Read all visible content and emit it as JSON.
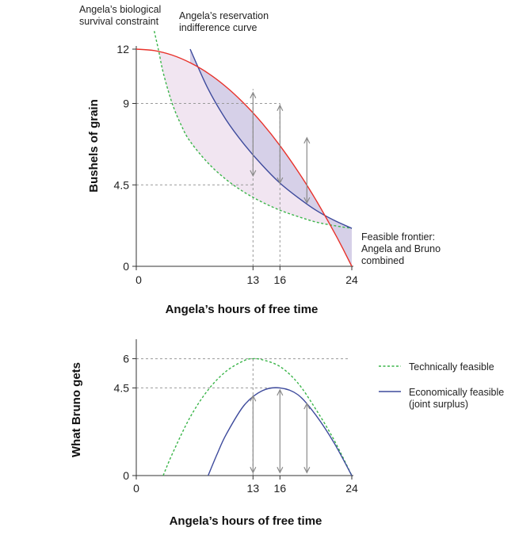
{
  "chart_data": [
    {
      "type": "line",
      "xlabel": "Angela’s hours of free time",
      "ylabel": "Bushels of grain",
      "x_ticks": [
        0,
        13,
        16,
        24
      ],
      "y_ticks": [
        0,
        4.5,
        9,
        12
      ],
      "x_tick_labels": [
        "0",
        "13",
        "16",
        "24"
      ],
      "y_tick_labels": [
        "0",
        "4.5",
        "9",
        "12"
      ],
      "xlim": [
        0,
        24
      ],
      "ylim": [
        0,
        12
      ],
      "grid": false,
      "annotations": {
        "survival": "Angela’s biological survival constraint",
        "survival_lines": [
          "Angela’s biological",
          "survival constraint"
        ],
        "reservation": "Angela’s reservation indifference curve",
        "reservation_lines": [
          "Angela’s reservation",
          "indifference curve"
        ],
        "frontier": "Feasible frontier: Angela and Bruno combined",
        "frontier_lines": [
          "Feasible frontier:",
          "Angela and Bruno",
          "combined"
        ]
      },
      "reference_lines": [
        {
          "y": 9,
          "x_to": 16
        },
        {
          "y": 4.5,
          "x_to": 13
        },
        {
          "x": 13,
          "y_from": 0,
          "y_to": 9.8
        },
        {
          "x": 16,
          "y_from": 0,
          "y_to": 9
        }
      ],
      "series": [
        {
          "role": "feasible-frontier",
          "color": "#e8322b",
          "style": "solid",
          "x": [
            0,
            2,
            4,
            6,
            8,
            10,
            12,
            14,
            16,
            18,
            20,
            22,
            23,
            24
          ],
          "y": [
            12,
            11.92,
            11.67,
            11.25,
            10.67,
            9.92,
            9.0,
            7.92,
            6.67,
            5.25,
            3.67,
            1.92,
            0.98,
            0
          ]
        },
        {
          "role": "reservation-indifference-curve",
          "color": "#3d4a9c",
          "style": "solid",
          "x": [
            6,
            8,
            10,
            12,
            14,
            16,
            18,
            20,
            22,
            24
          ],
          "y": [
            12.0,
            9.8,
            8.1,
            6.75,
            5.6,
            4.6,
            3.8,
            3.1,
            2.55,
            2.1
          ]
        },
        {
          "role": "biological-survival-constraint",
          "color": "#3bb54a",
          "style": "dashed",
          "x": [
            2,
            2.5,
            3,
            4,
            5,
            6,
            8,
            10,
            12,
            14,
            16,
            18,
            20,
            22,
            24
          ],
          "y": [
            13,
            11.9,
            10.7,
            9.0,
            7.8,
            6.9,
            5.7,
            4.8,
            4.1,
            3.55,
            3.1,
            2.75,
            2.45,
            2.25,
            2.1
          ]
        }
      ],
      "arrows": [
        {
          "x": 13,
          "y_low": 5.0,
          "y_high": 9.6
        },
        {
          "x": 16,
          "y_low": 4.6,
          "y_high": 8.9
        },
        {
          "x": 19,
          "y_low": 3.5,
          "y_high": 7.1
        }
      ],
      "shaded_regions": [
        {
          "between": [
            "biological-survival-constraint",
            "feasible-frontier"
          ],
          "color": "#f1e5f1"
        },
        {
          "between": [
            "reservation-indifference-curve",
            "feasible-frontier"
          ],
          "color": "#d6d0e8"
        }
      ]
    },
    {
      "type": "line",
      "xlabel": "Angela’s hours of free time",
      "ylabel": "What Bruno gets",
      "x_ticks": [
        0,
        13,
        16,
        24
      ],
      "y_ticks": [
        0,
        4.5,
        6
      ],
      "x_tick_labels": [
        "0",
        "13",
        "16",
        "24"
      ],
      "y_tick_labels": [
        "0",
        "4.5",
        "6"
      ],
      "xlim": [
        0,
        24
      ],
      "ylim": [
        0,
        7
      ],
      "grid": false,
      "legend_position": "right",
      "reference_lines": [
        {
          "y": 6,
          "x_from": 0,
          "x_to": 24
        },
        {
          "y": 4.5,
          "x_from": 0,
          "x_to": 16
        },
        {
          "x": 13,
          "y_from": 0,
          "y_to": 6
        }
      ],
      "series": [
        {
          "name": "Technically feasible",
          "color": "#3bb54a",
          "style": "dashed",
          "x": [
            3,
            4,
            6,
            8,
            10,
            12,
            13,
            14,
            16,
            18,
            20,
            22,
            24
          ],
          "y": [
            0,
            1.1,
            3.0,
            4.4,
            5.35,
            5.9,
            6.0,
            5.95,
            5.6,
            4.75,
            3.4,
            1.85,
            0
          ]
        },
        {
          "name": "Economically feasible",
          "name_lines": [
            "Economically feasible",
            "(joint surplus)"
          ],
          "color": "#3d4a9c",
          "style": "solid",
          "x": [
            8,
            9,
            10,
            12,
            14,
            16,
            18,
            20,
            22,
            24
          ],
          "y": [
            0,
            1.1,
            2.1,
            3.6,
            4.35,
            4.5,
            4.15,
            3.1,
            1.7,
            0
          ]
        }
      ],
      "arrows": [
        {
          "x": 13,
          "y_low": 0.15,
          "y_high": 4.1
        },
        {
          "x": 16,
          "y_low": 0.15,
          "y_high": 4.4
        },
        {
          "x": 19,
          "y_low": 0.15,
          "y_high": 3.7
        }
      ]
    }
  ]
}
